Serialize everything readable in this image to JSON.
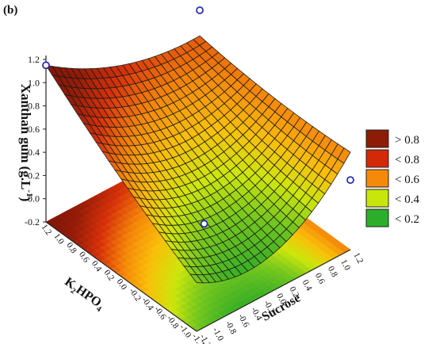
{
  "panel_label": "(b)",
  "chart_data": {
    "type": "surface3d",
    "title": "",
    "zlabel": "Xanthan gum (g.L-1)",
    "zlabel_parts": {
      "main": "Xanthan gum (g.L",
      "sup": "-1",
      "close": ")"
    },
    "xlabel": "Sucrose",
    "ylabel": "K2HPO4",
    "ylabel_parts": {
      "k": "K",
      "sub1": "2",
      "hpo": "HPO",
      "sub2": "4"
    },
    "z_ticks": [
      "1.2",
      "1.0",
      "0.8",
      "0.6",
      "0.4",
      "0.2",
      "0.0",
      "-0.2"
    ],
    "x_ticks": [
      "-1.2",
      "-1.0",
      "-0.8",
      "-0.6",
      "-0.4",
      "-0.2",
      "0.0",
      "0.2",
      "0.4",
      "0.6",
      "0.8",
      "1.0",
      "1.2"
    ],
    "y_ticks": [
      "1.2",
      "1.0",
      "0.8",
      "0.6",
      "0.4",
      "0.2",
      "0.0",
      "-0.2",
      "-0.4",
      "-0.6",
      "-0.8",
      "-1.0",
      "-1.2"
    ],
    "x_range": [
      -1.2,
      1.2
    ],
    "y_range": [
      -1.2,
      1.2
    ],
    "z_range": [
      -0.2,
      1.2
    ],
    "surface_samples": {
      "x": [
        -1.2,
        0.0,
        1.2
      ],
      "y": [
        -1.2,
        0.0,
        1.2
      ],
      "z": [
        [
          0.22,
          0.64,
          1.15
        ],
        [
          0.12,
          0.38,
          0.8
        ],
        [
          0.64,
          0.63,
          0.7
        ]
      ]
    },
    "points": [
      {
        "x": -1.2,
        "y": 1.2,
        "z": 1.15
      },
      {
        "x": 1.2,
        "y": 1.2,
        "z": 0.92
      },
      {
        "x": 1.2,
        "y": -1.2,
        "z": 0.4
      },
      {
        "x": -0.2,
        "y": -0.3,
        "z": 0.08
      }
    ],
    "legend": {
      "position": "right",
      "items": [
        {
          "label": "> 0.8",
          "color": "#8e1b06"
        },
        {
          "label": "< 0.8",
          "color": "#d22a08"
        },
        {
          "label": "< 0.6",
          "color": "#f58a0a"
        },
        {
          "label": "< 0.4",
          "color": "#c9e60a"
        },
        {
          "label": "< 0.2",
          "color": "#2cae2a"
        }
      ]
    },
    "grid": false
  }
}
